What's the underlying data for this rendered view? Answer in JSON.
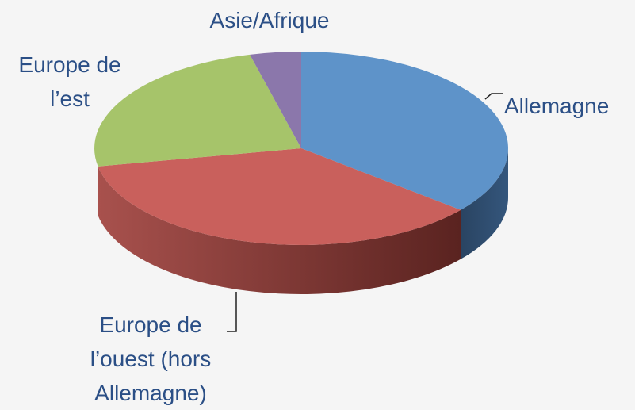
{
  "chart_data": {
    "type": "pie3d",
    "categories": [
      "Allemagne",
      "Europe de l’ouest (hors Allemagne)",
      "Europe de l’est",
      "Asie/Afrique"
    ],
    "values": [
      36,
      36,
      24,
      4
    ],
    "colors": [
      "#5e93c9",
      "#c9605c",
      "#a6c46a",
      "#8b77ab"
    ]
  }
}
